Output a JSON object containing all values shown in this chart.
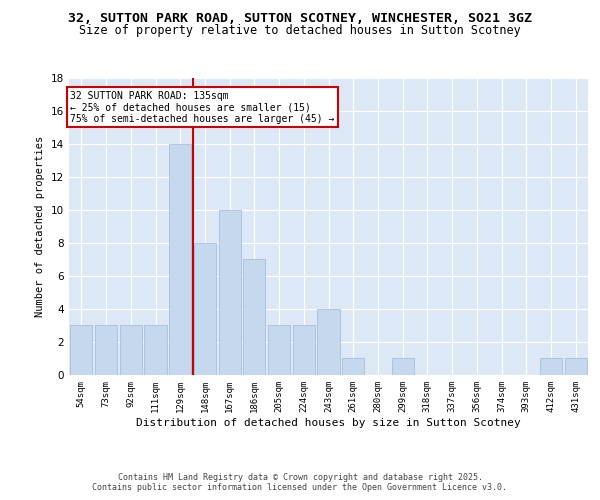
{
  "title1": "32, SUTTON PARK ROAD, SUTTON SCOTNEY, WINCHESTER, SO21 3GZ",
  "title2": "Size of property relative to detached houses in Sutton Scotney",
  "xlabel": "Distribution of detached houses by size in Sutton Scotney",
  "ylabel": "Number of detached properties",
  "categories": [
    "54sqm",
    "73sqm",
    "92sqm",
    "111sqm",
    "129sqm",
    "148sqm",
    "167sqm",
    "186sqm",
    "205sqm",
    "224sqm",
    "243sqm",
    "261sqm",
    "280sqm",
    "299sqm",
    "318sqm",
    "337sqm",
    "356sqm",
    "374sqm",
    "393sqm",
    "412sqm",
    "431sqm"
  ],
  "values": [
    3,
    3,
    3,
    3,
    14,
    8,
    10,
    7,
    3,
    3,
    4,
    1,
    0,
    1,
    0,
    0,
    0,
    0,
    0,
    1,
    1
  ],
  "bar_color": "#c5d8ed",
  "bar_edge_color": "#a0b8d8",
  "subject_line_index": 4,
  "subject_line_color": "#cc0000",
  "annotation_box_color": "#cc0000",
  "annotation_line1": "32 SUTTON PARK ROAD: 135sqm",
  "annotation_line2": "← 25% of detached houses are smaller (15)",
  "annotation_line3": "75% of semi-detached houses are larger (45) →",
  "ylim": [
    0,
    18
  ],
  "yticks": [
    0,
    2,
    4,
    6,
    8,
    10,
    12,
    14,
    16,
    18
  ],
  "background_color": "#dce8f5",
  "grid_color": "#ffffff",
  "footer": "Contains HM Land Registry data © Crown copyright and database right 2025.\nContains public sector information licensed under the Open Government Licence v3.0.",
  "title_fontsize": 9.5,
  "subtitle_fontsize": 8.5,
  "axis_label_fontsize": 7.5,
  "tick_fontsize": 6.5,
  "annotation_fontsize": 7,
  "footer_fontsize": 6
}
